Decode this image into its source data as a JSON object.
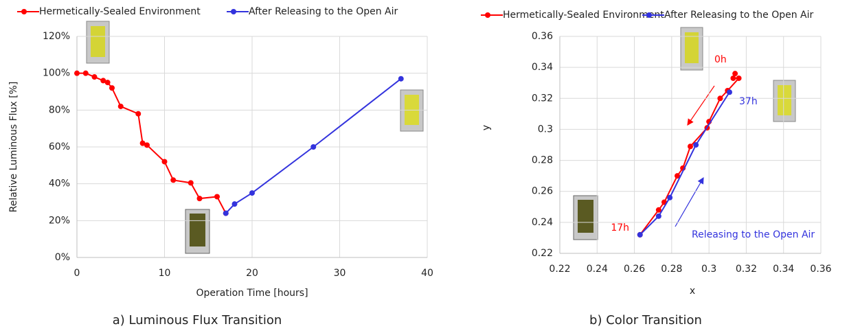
{
  "chart_data": [
    {
      "type": "line",
      "caption": "a) Luminous Flux Transition",
      "xlabel": "Operation Time [hours]",
      "ylabel": "Relative Luminous Flux [%]",
      "xlim": [
        0,
        40
      ],
      "xticks": [
        0,
        10,
        20,
        30,
        40
      ],
      "ylim": [
        0,
        120
      ],
      "yticks": [
        {
          "value": 0,
          "label": "0%"
        },
        {
          "value": 20,
          "label": "20%"
        },
        {
          "value": 40,
          "label": "40%"
        },
        {
          "value": 60,
          "label": "60%"
        },
        {
          "value": 80,
          "label": "80%"
        },
        {
          "value": 100,
          "label": "100%"
        },
        {
          "value": 120,
          "label": "120%"
        }
      ],
      "grid": true,
      "series": [
        {
          "name": "Hermetically-Sealed Environment",
          "color": "#ff0000",
          "x": [
            0,
            1,
            2,
            3,
            3.5,
            4,
            5,
            7,
            7.5,
            8,
            10,
            11,
            13,
            14,
            16,
            17
          ],
          "values": [
            100,
            100,
            98,
            96,
            95,
            92,
            82,
            78,
            62,
            61,
            52,
            42,
            40.5,
            32,
            33,
            24
          ]
        },
        {
          "name": "After Releasing to the Open Air",
          "color": "#3333dd",
          "x": [
            17,
            18,
            20,
            27,
            37
          ],
          "values": [
            24,
            29,
            35,
            60,
            97
          ]
        }
      ],
      "annotations": []
    },
    {
      "type": "line",
      "caption": "b) Color Transition",
      "xlabel": "x",
      "ylabel": "y",
      "xlim": [
        0.22,
        0.36
      ],
      "xticks": [
        0.22,
        0.24,
        0.26,
        0.28,
        0.3,
        0.32,
        0.34,
        0.36
      ],
      "ylim": [
        0.22,
        0.36
      ],
      "yticks": [
        0.22,
        0.24,
        0.26,
        0.28,
        0.3,
        0.32,
        0.34,
        0.36
      ],
      "grid": true,
      "series": [
        {
          "name": "Hermetically-Sealed Environment",
          "color": "#ff0000",
          "x": [
            0.314,
            0.313,
            0.316,
            0.31,
            0.306,
            0.3,
            0.299,
            0.29,
            0.286,
            0.283,
            0.276,
            0.273,
            0.263
          ],
          "values": [
            0.336,
            0.333,
            0.333,
            0.325,
            0.32,
            0.305,
            0.301,
            0.289,
            0.275,
            0.27,
            0.253,
            0.248,
            0.232
          ]
        },
        {
          "name": "After Releasing to the Open Air",
          "color": "#3333dd",
          "x": [
            0.263,
            0.273,
            0.279,
            0.293,
            0.311
          ],
          "values": [
            0.232,
            0.244,
            0.256,
            0.29,
            0.324
          ]
        }
      ],
      "annotations": [
        {
          "text": "0h",
          "color": "#ff0000"
        },
        {
          "text": "37h",
          "color": "#3333dd"
        },
        {
          "text": "17h",
          "color": "#ff0000"
        },
        {
          "text": "Releasing to the Open Air",
          "color": "#3333dd"
        }
      ]
    }
  ]
}
